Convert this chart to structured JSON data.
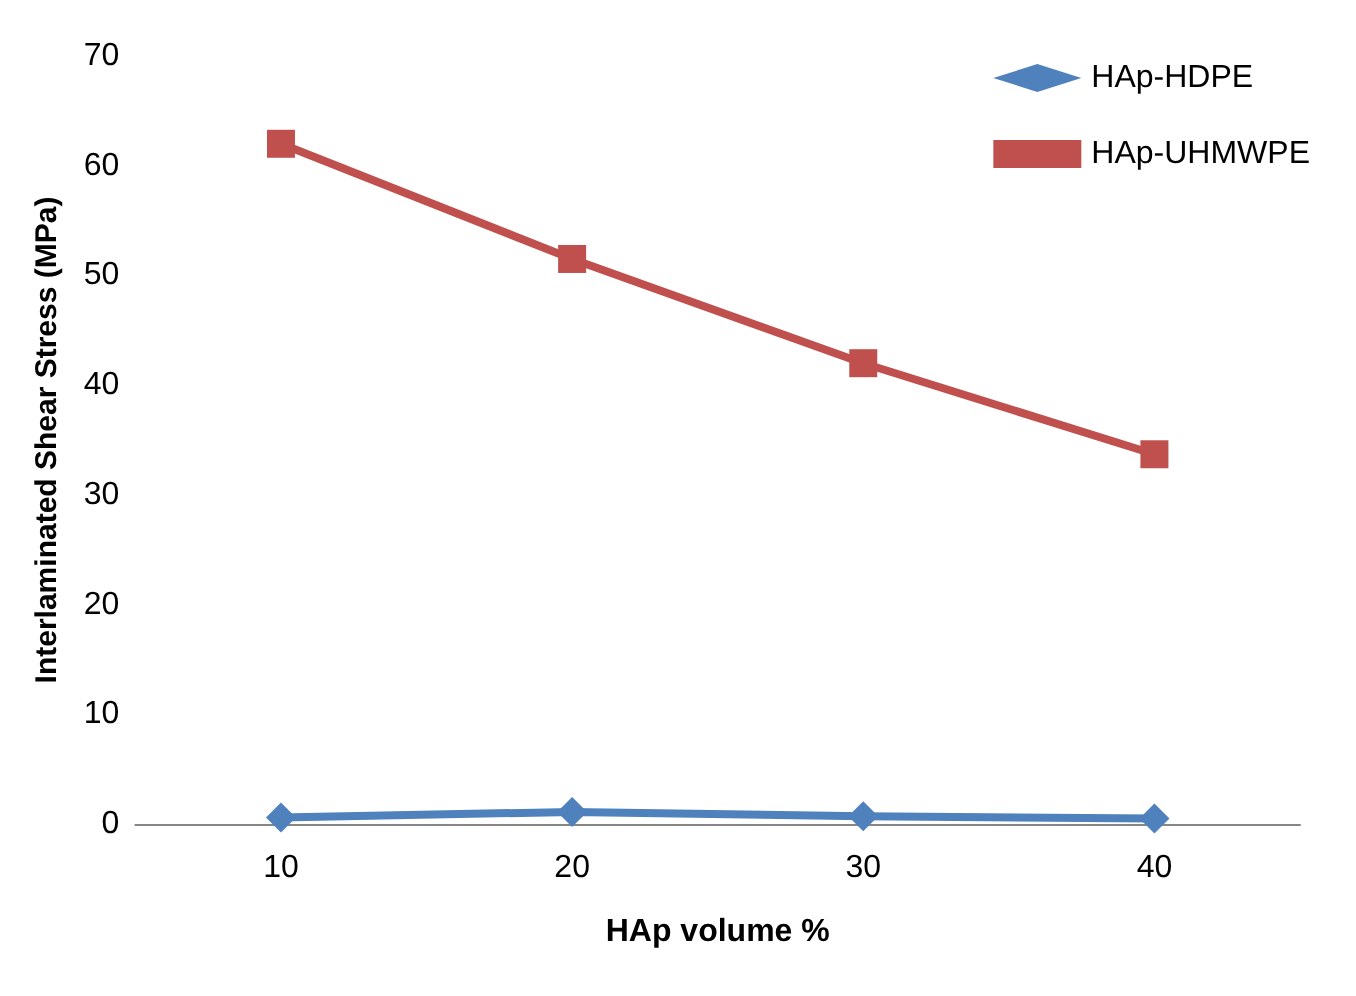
{
  "chart_data": {
    "type": "line",
    "xlabel": "HAp volume %",
    "ylabel": "Interlaminated Shear Stress (MPa)",
    "categories": [
      "10",
      "20",
      "30",
      "40"
    ],
    "series": [
      {
        "name": "HAp-HDPE",
        "color": "#4f81bd",
        "marker": "diamond",
        "values": [
          0.6,
          1.1,
          0.7,
          0.5
        ]
      },
      {
        "name": "HAp-UHMWPE",
        "color": "#c0504d",
        "marker": "square",
        "values": [
          62,
          51.5,
          42,
          33.7
        ]
      }
    ],
    "ylim": [
      0,
      70
    ],
    "yticks": [
      0,
      10,
      20,
      30,
      40,
      50,
      60,
      70
    ],
    "grid": false,
    "legend": "top right",
    "line_style": "solid"
  }
}
